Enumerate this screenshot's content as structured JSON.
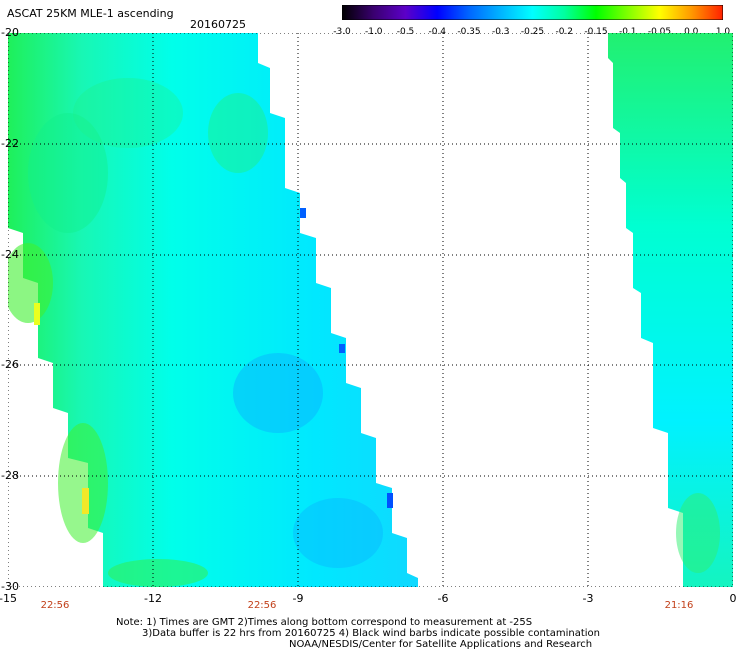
{
  "title": "ASCAT 25KM MLE-1 ascending",
  "date": "20160725",
  "colorbar": {
    "labels": [
      "-3.0",
      "-1.0",
      "-0.5",
      "-0.4",
      "-0.35",
      "-0.3",
      "-0.25",
      "-0.2",
      "-0.15",
      "-0.1",
      "-0.05",
      "0.0",
      "1.0"
    ],
    "colors": [
      "#000000",
      "#3a0070",
      "#5c00c8",
      "#0000ff",
      "#0066ff",
      "#00b4ff",
      "#00ffff",
      "#00ffa0",
      "#00ff00",
      "#80ff00",
      "#ffff00",
      "#ff9a00",
      "#ff2000"
    ]
  },
  "map": {
    "lon_range": [
      -15,
      0
    ],
    "lat_range": [
      -30,
      -20
    ],
    "x_ticks": [
      "-15",
      "-12",
      "-9",
      "-6",
      "-3",
      "0"
    ],
    "y_ticks": [
      "-20",
      "-22",
      "-24",
      "-26",
      "-28",
      "-30"
    ],
    "grid": true,
    "swaths": [
      {
        "name": "west-swath",
        "time": "22:56"
      },
      {
        "name": "east-swath",
        "time": "21:16"
      }
    ],
    "bottom_times": [
      "22:56",
      "22:56",
      "21:16"
    ]
  },
  "notes": {
    "line1": "Note: 1) Times are GMT 2)Times along bottom correspond to measurement at -25S",
    "line2": "3)Data buffer is 22 hrs from 20160725 4) Black wind barbs indicate possible contamination",
    "line3": "NOAA/NESDIS/Center for Satellite Applications and Research"
  }
}
